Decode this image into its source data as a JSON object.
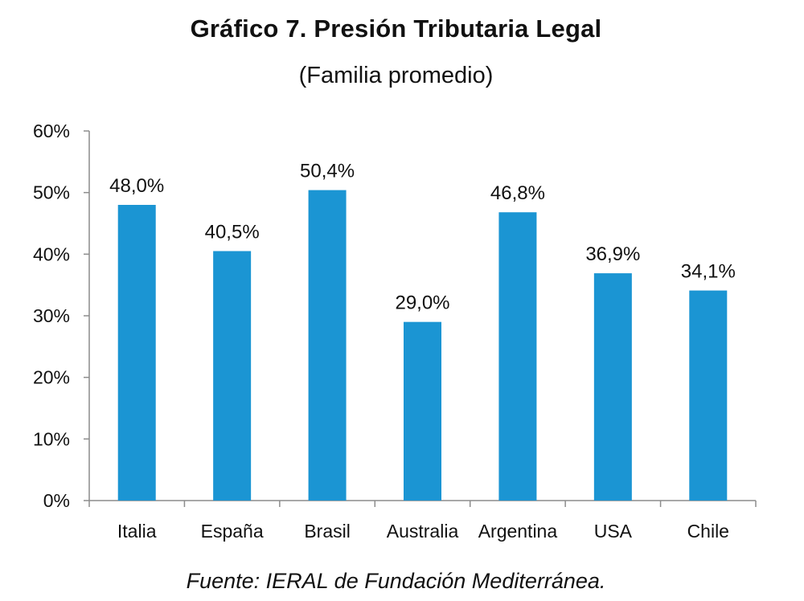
{
  "chart_data": {
    "type": "bar",
    "title": "Gráfico 7. Presión Tributaria Legal",
    "subtitle": "(Familia promedio)",
    "source": "Fuente: IERAL de Fundación Mediterránea.",
    "categories": [
      "Italia",
      "España",
      "Brasil",
      "Australia",
      "Argentina",
      "USA",
      "Chile"
    ],
    "values": [
      48.0,
      40.5,
      50.4,
      29.0,
      46.8,
      36.9,
      34.1
    ],
    "data_labels": [
      "48,0%",
      "40,5%",
      "50,4%",
      "29,0%",
      "46,8%",
      "36,9%",
      "34,1%"
    ],
    "xlabel": "",
    "ylabel": "",
    "ylim": [
      0,
      60
    ],
    "yticks": [
      0,
      10,
      20,
      30,
      40,
      50,
      60
    ],
    "ytick_labels": [
      "0%",
      "10%",
      "20%",
      "30%",
      "40%",
      "50%",
      "60%"
    ],
    "grid": false,
    "legend": "none",
    "bar_color": "#1B95D3",
    "axis_color": "#8C8C8C"
  }
}
